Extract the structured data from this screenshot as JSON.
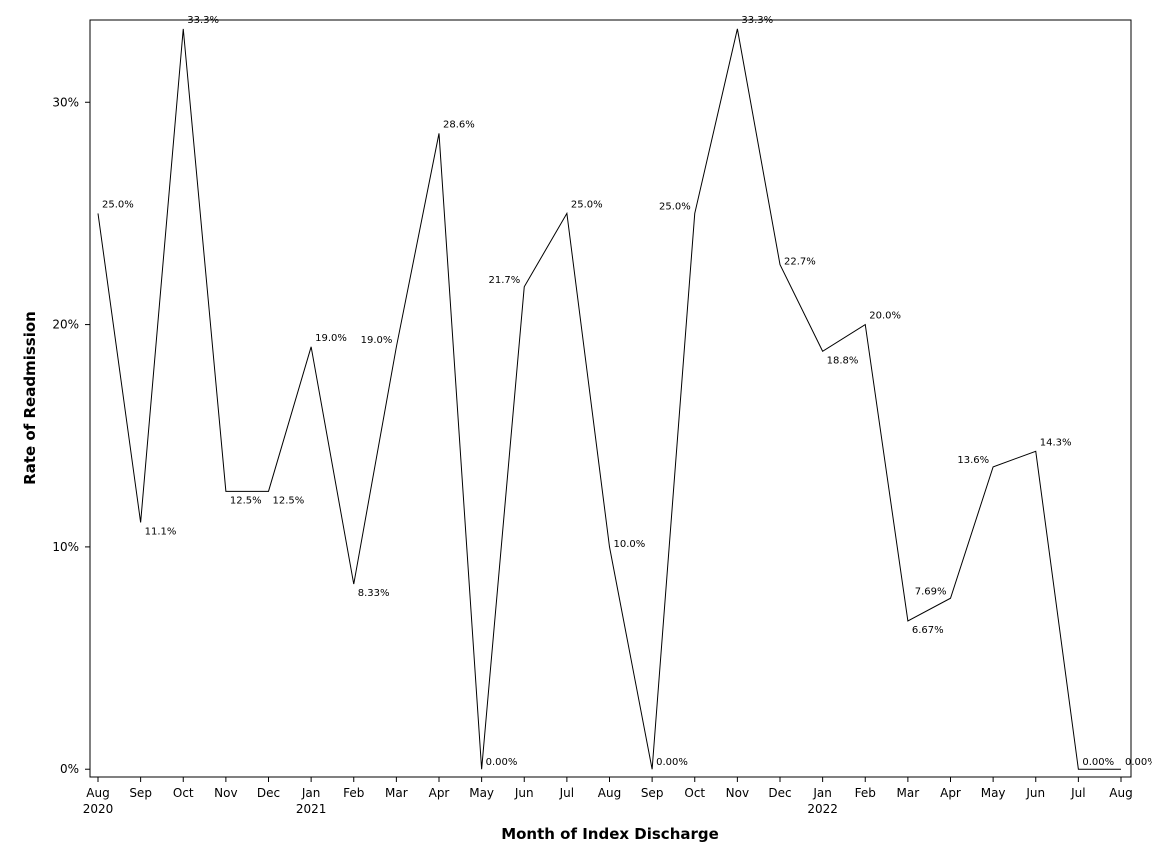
{
  "chart_data": {
    "type": "line",
    "title": "",
    "xlabel": "Month of Index Discharge",
    "ylabel": "Rate of Readmission",
    "x": [
      "Aug",
      "Sep",
      "Oct",
      "Nov",
      "Dec",
      "Jan",
      "Feb",
      "Mar",
      "Apr",
      "May",
      "Jun",
      "Jul",
      "Aug",
      "Sep",
      "Oct",
      "Nov",
      "Dec",
      "Jan",
      "Feb",
      "Mar",
      "Apr",
      "May",
      "Jun",
      "Jul",
      "Aug"
    ],
    "year_labels": [
      {
        "index": 0,
        "text": "2020"
      },
      {
        "index": 5,
        "text": "2021"
      },
      {
        "index": 17,
        "text": "2022"
      }
    ],
    "series": [
      {
        "values": [
          25.0,
          11.1,
          33.3,
          12.5,
          12.5,
          19.0,
          8.33,
          19.0,
          28.6,
          0.0,
          21.7,
          25.0,
          10.0,
          0.0,
          25.0,
          33.3,
          22.7,
          18.8,
          20.0,
          6.67,
          7.69,
          13.6,
          14.3,
          0.0,
          0.0
        ],
        "point_labels": [
          "25.0%",
          "11.1%",
          "33.3%",
          "12.5%",
          "12.5%",
          "19.0%",
          "8.33%",
          "19.0%",
          "28.6%",
          "0.00%",
          "21.7%",
          "25.0%",
          "10.0%",
          "0.00%",
          "25.0%",
          "33.3%",
          "22.7%",
          "18.8%",
          "20.0%",
          "6.67%",
          "7.69%",
          "13.6%",
          "14.3%",
          "0.00%",
          "0.00%"
        ]
      }
    ],
    "yticks": [
      0,
      10,
      20,
      30
    ],
    "ytick_labels": [
      "0%",
      "10%",
      "20%",
      "30%"
    ],
    "ylim": [
      -0.35,
      33.7
    ],
    "grid": false,
    "legend": "none",
    "colors": {
      "line": "#000000",
      "axis": "#000000"
    }
  }
}
